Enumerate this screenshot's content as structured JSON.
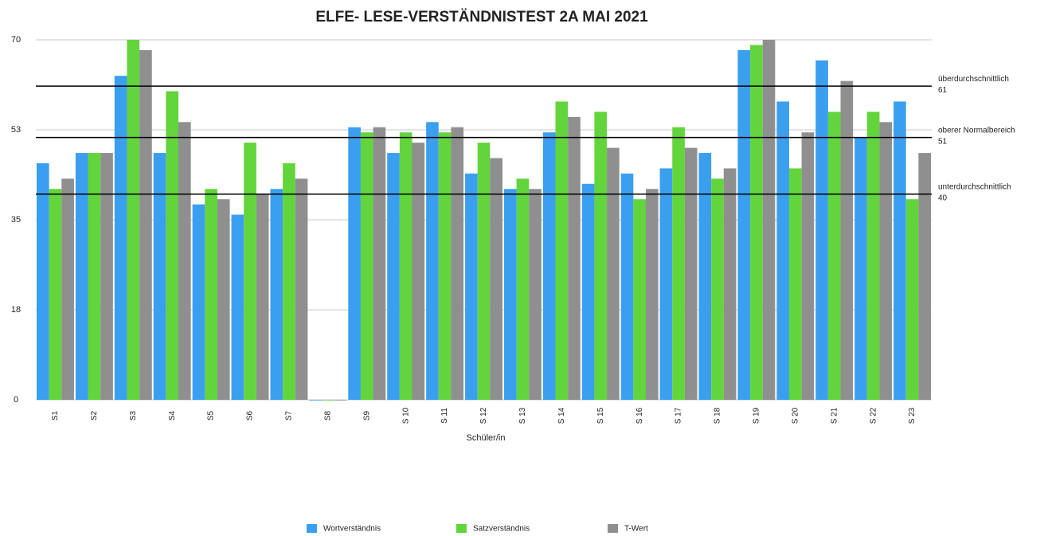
{
  "chart_data": {
    "type": "bar",
    "title": "ELFE- LESE-VERSTÄNDNISTEST 2A MAI 2021",
    "x_label": "Schüler/in",
    "categories": [
      "S1",
      "S2",
      "S3",
      "S4",
      "S5",
      "S6",
      "S7",
      "S8",
      "S9",
      "S 10",
      "S 11",
      "S 12",
      "S 13",
      "S 14",
      "S 15",
      "S 16",
      "S 17",
      "S 18",
      "S 19",
      "S 20",
      "S 21",
      "S 22",
      "S 23"
    ],
    "series": [
      {
        "name": "Wortverständnis",
        "color": "#3b9ff0",
        "values": [
          46,
          48,
          63,
          48,
          38,
          36,
          41,
          0,
          53,
          48,
          54,
          44,
          41,
          52,
          42,
          44,
          45,
          48,
          68,
          58,
          66,
          51,
          58
        ]
      },
      {
        "name": "Satzverständnis",
        "color": "#62d43c",
        "values": [
          41,
          48,
          70,
          60,
          41,
          50,
          46,
          0,
          52,
          52,
          52,
          50,
          43,
          58,
          56,
          39,
          53,
          43,
          69,
          45,
          56,
          56,
          39
        ]
      },
      {
        "name": "T-Wert",
        "color": "#8f8f8f",
        "values": [
          43,
          48,
          68,
          54,
          39,
          40,
          43,
          0,
          53,
          50,
          53,
          47,
          41,
          55,
          49,
          41,
          49,
          45,
          70,
          52,
          62,
          54,
          48
        ]
      }
    ],
    "ylim": [
      0,
      70
    ],
    "yticks": [
      0,
      {
        "value": 17.5,
        "label": "18"
      },
      35,
      {
        "value": 52.5,
        "label": "53"
      },
      70
    ],
    "grid": true,
    "reference_lines": [
      {
        "label": "überdurchschnittlich",
        "value": 61
      },
      {
        "label": "oberer Normalbereich",
        "value": 51
      },
      {
        "label": "unterdurchschnittlich",
        "value": 40
      }
    ],
    "legend": "bottom"
  }
}
